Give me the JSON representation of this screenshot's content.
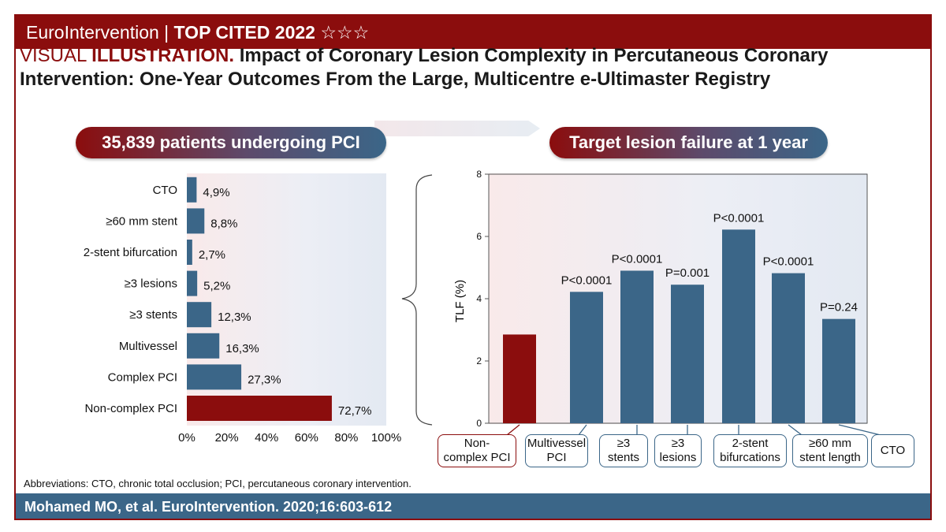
{
  "header": {
    "brand": "EuroIntervention",
    "separator": "|",
    "badge": "TOP CITED 2022",
    "stars": "☆☆☆"
  },
  "title": {
    "prefix_light": "VISUAL ",
    "prefix_bold": "ILLUSTRATION.",
    "text": " Impact of Coronary Lesion Complexity in Percutaneous Coronary Intervention: One-Year Outcomes From the Large, Multicentre e-Ultimaster Registry"
  },
  "pills": {
    "left": "35,839 patients undergoing PCI",
    "right": "Target lesion failure at 1 year"
  },
  "colors": {
    "brand_red": "#8b0d0d",
    "blue": "#3b6688"
  },
  "chart_data": [
    {
      "type": "bar",
      "orientation": "horizontal",
      "categories": [
        "CTO",
        "≥60 mm stent",
        "2-stent bifurcation",
        "≥3 lesions",
        "≥3 stents",
        "Multivessel",
        "Complex PCI",
        "Non-complex PCI"
      ],
      "values": [
        4.9,
        8.8,
        2.7,
        5.2,
        12.3,
        16.3,
        27.3,
        72.7
      ],
      "value_labels": [
        "4,9%",
        "8,8%",
        "2,7%",
        "5,2%",
        "12,3%",
        "16,3%",
        "27,3%",
        "72,7%"
      ],
      "xlim": [
        0,
        100
      ],
      "xticks": [
        "0%",
        "20%",
        "40%",
        "60%",
        "80%",
        "100%"
      ],
      "highlight": "Non-complex PCI"
    },
    {
      "type": "bar",
      "categories": [
        "Non-complex PCI",
        "Multivessel PCI",
        "≥3 stents",
        "≥3 lesions",
        "2-stent bifurcations",
        "≥60 mm stent length",
        "CTO"
      ],
      "category_labels": [
        [
          "Non-",
          "complex PCI"
        ],
        [
          "Multivessel",
          "PCI"
        ],
        [
          "≥3",
          "stents"
        ],
        [
          "≥3",
          "lesions"
        ],
        [
          "2-stent",
          "bifurcations"
        ],
        [
          "≥60 mm",
          "stent length"
        ],
        [
          "CTO"
        ]
      ],
      "values": [
        2.85,
        4.22,
        4.9,
        4.45,
        6.22,
        4.82,
        3.35
      ],
      "annotations": [
        "",
        "P<0.0001",
        "P<0.0001",
        "P=0.001",
        "P<0.0001",
        "P<0.0001",
        "P=0.24"
      ],
      "ylabel": "TLF (%)",
      "ylim": [
        0,
        8
      ],
      "yticks": [
        0,
        2,
        4,
        6,
        8
      ],
      "highlight": "Non-complex PCI"
    }
  ],
  "abbreviations": "Abbreviations: CTO, chronic total occlusion; PCI, percutaneous coronary intervention.",
  "citation": "Mohamed MO, et al. EuroIntervention. 2020;16:603-612"
}
